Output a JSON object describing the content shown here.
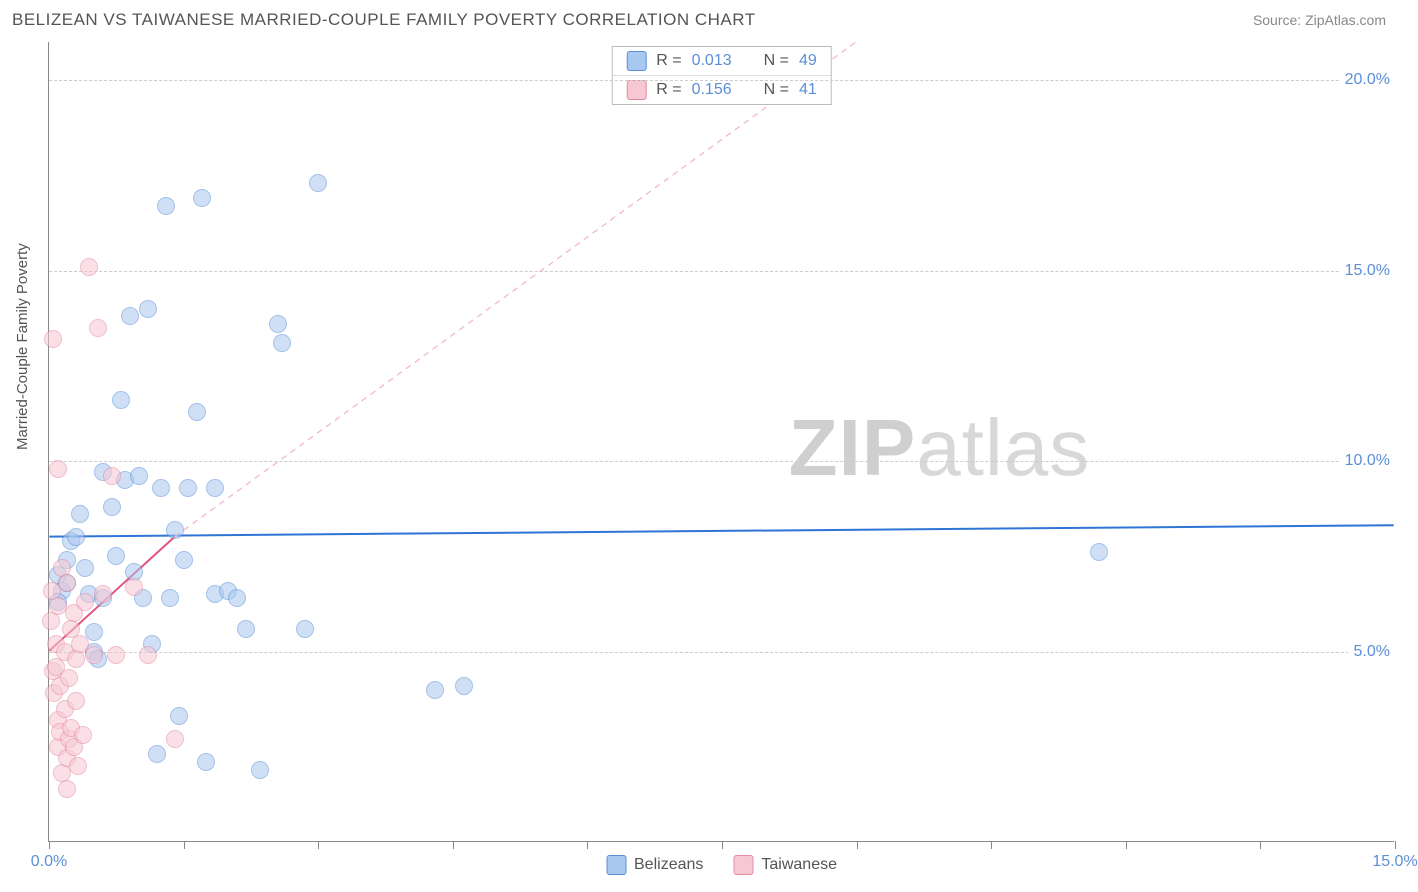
{
  "header": {
    "title": "BELIZEAN VS TAIWANESE MARRIED-COUPLE FAMILY POVERTY CORRELATION CHART",
    "source": "Source: ZipAtlas.com"
  },
  "watermark": {
    "part1": "ZIP",
    "part2": "atlas"
  },
  "chart": {
    "type": "scatter",
    "y_axis_label": "Married-Couple Family Poverty",
    "xlim": [
      0,
      15
    ],
    "ylim": [
      0,
      21
    ],
    "y_ticks": [
      {
        "v": 5,
        "label": "5.0%"
      },
      {
        "v": 10,
        "label": "10.0%"
      },
      {
        "v": 15,
        "label": "15.0%"
      },
      {
        "v": 20,
        "label": "20.0%"
      }
    ],
    "x_ticks_major": [
      0,
      15
    ],
    "x_ticks_minor": [
      1.5,
      3.0,
      4.5,
      6.0,
      7.5,
      9.0,
      10.5,
      12.0,
      13.5
    ],
    "x_tick_labels": [
      {
        "v": 0,
        "label": "0.0%"
      },
      {
        "v": 15,
        "label": "15.0%"
      }
    ],
    "background_color": "#ffffff",
    "grid_color": "#cccccc",
    "axis_color": "#888888",
    "tick_label_color": "#5b8fd6",
    "marker_radius": 9,
    "marker_opacity": 0.55,
    "series": [
      {
        "name": "Belizeans",
        "fill": "#a9c8ef",
        "stroke": "#5b8fd6",
        "R": "0.013",
        "N": "49",
        "regression": {
          "x1": 0,
          "y1": 8.0,
          "x2": 15,
          "y2": 8.3,
          "color": "#2e75d6",
          "dash": "none",
          "width": 2
        },
        "points": [
          [
            0.1,
            7.0
          ],
          [
            0.15,
            6.6
          ],
          [
            0.1,
            6.3
          ],
          [
            0.2,
            7.4
          ],
          [
            0.2,
            6.8
          ],
          [
            0.25,
            7.9
          ],
          [
            0.3,
            8.0
          ],
          [
            0.35,
            8.6
          ],
          [
            0.4,
            7.2
          ],
          [
            0.45,
            6.5
          ],
          [
            0.5,
            5.5
          ],
          [
            0.5,
            5.0
          ],
          [
            0.55,
            4.8
          ],
          [
            0.6,
            6.4
          ],
          [
            0.6,
            9.7
          ],
          [
            0.7,
            8.8
          ],
          [
            0.75,
            7.5
          ],
          [
            0.8,
            11.6
          ],
          [
            0.85,
            9.5
          ],
          [
            0.9,
            13.8
          ],
          [
            0.95,
            7.1
          ],
          [
            1.0,
            9.6
          ],
          [
            1.05,
            6.4
          ],
          [
            1.1,
            14.0
          ],
          [
            1.15,
            5.2
          ],
          [
            1.2,
            2.3
          ],
          [
            1.25,
            9.3
          ],
          [
            1.3,
            16.7
          ],
          [
            1.35,
            6.4
          ],
          [
            1.4,
            8.2
          ],
          [
            1.45,
            3.3
          ],
          [
            1.5,
            7.4
          ],
          [
            1.55,
            9.3
          ],
          [
            1.65,
            11.3
          ],
          [
            1.7,
            16.9
          ],
          [
            1.75,
            2.1
          ],
          [
            1.85,
            6.5
          ],
          [
            1.85,
            9.3
          ],
          [
            2.0,
            6.6
          ],
          [
            2.1,
            6.4
          ],
          [
            2.2,
            5.6
          ],
          [
            2.35,
            1.9
          ],
          [
            2.6,
            13.1
          ],
          [
            2.55,
            13.6
          ],
          [
            2.85,
            5.6
          ],
          [
            3.0,
            17.3
          ],
          [
            4.3,
            4.0
          ],
          [
            4.62,
            4.1
          ],
          [
            11.7,
            7.6
          ]
        ]
      },
      {
        "name": "Taiwanese",
        "fill": "#f7c8d3",
        "stroke": "#e38aa1",
        "R": "0.156",
        "N": "41",
        "regression": {
          "x1": 0,
          "y1": 5.0,
          "x2": 1.4,
          "y2": 8.0,
          "color": "#e05581",
          "dash": "none",
          "width": 2
        },
        "extrapolation": {
          "x1": 1.4,
          "y1": 8.0,
          "x2": 9.0,
          "y2": 21.0,
          "color": "#f4b8c8",
          "dash": "6,5",
          "width": 1.3
        },
        "points": [
          [
            0.02,
            5.8
          ],
          [
            0.03,
            6.6
          ],
          [
            0.05,
            4.5
          ],
          [
            0.05,
            13.2
          ],
          [
            0.06,
            3.9
          ],
          [
            0.08,
            5.2
          ],
          [
            0.08,
            4.6
          ],
          [
            0.1,
            6.2
          ],
          [
            0.1,
            3.2
          ],
          [
            0.1,
            2.5
          ],
          [
            0.1,
            9.8
          ],
          [
            0.12,
            2.9
          ],
          [
            0.12,
            4.1
          ],
          [
            0.15,
            7.2
          ],
          [
            0.15,
            1.8
          ],
          [
            0.18,
            3.5
          ],
          [
            0.18,
            5.0
          ],
          [
            0.2,
            6.8
          ],
          [
            0.2,
            2.2
          ],
          [
            0.2,
            1.4
          ],
          [
            0.22,
            4.3
          ],
          [
            0.22,
            2.7
          ],
          [
            0.25,
            5.6
          ],
          [
            0.25,
            3.0
          ],
          [
            0.28,
            6.0
          ],
          [
            0.28,
            2.5
          ],
          [
            0.3,
            3.7
          ],
          [
            0.3,
            4.8
          ],
          [
            0.32,
            2.0
          ],
          [
            0.35,
            5.2
          ],
          [
            0.38,
            2.8
          ],
          [
            0.4,
            6.3
          ],
          [
            0.45,
            15.1
          ],
          [
            0.5,
            4.9
          ],
          [
            0.55,
            13.5
          ],
          [
            0.6,
            6.5
          ],
          [
            0.7,
            9.6
          ],
          [
            0.75,
            4.9
          ],
          [
            0.95,
            6.7
          ],
          [
            1.1,
            4.9
          ],
          [
            1.4,
            2.7
          ]
        ]
      }
    ],
    "legend_top": [
      {
        "swatch_fill": "#a9c8ef",
        "swatch_stroke": "#5b8fd6",
        "r_label": "R =",
        "r_val": "0.013",
        "n_label": "N =",
        "n_val": "49"
      },
      {
        "swatch_fill": "#f7c8d3",
        "swatch_stroke": "#e38aa1",
        "r_label": "R =",
        "r_val": "0.156",
        "n_label": "N =",
        "n_val": "41"
      }
    ],
    "legend_bottom": [
      {
        "swatch_fill": "#a9c8ef",
        "swatch_stroke": "#5b8fd6",
        "label": "Belizeans"
      },
      {
        "swatch_fill": "#f7c8d3",
        "swatch_stroke": "#e38aa1",
        "label": "Taiwanese"
      }
    ]
  }
}
